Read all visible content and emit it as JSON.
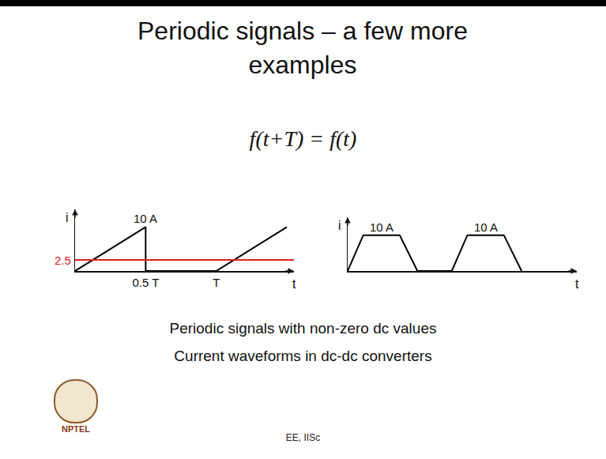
{
  "slide": {
    "title": "Periodic signals – a few more examples",
    "equation": "f(t+T) = f(t)",
    "notes": [
      "Periodic signals with non-zero dc values",
      "Current waveforms in dc-dc converters"
    ],
    "footer": "EE, IISc",
    "logo_text": "NPTEL"
  },
  "chart_data": [
    {
      "type": "line",
      "x_label": "t",
      "y_label": "i",
      "x": [
        0,
        0.5,
        0.5,
        1,
        1.5
      ],
      "values": [
        0,
        10,
        0,
        0,
        10
      ],
      "color": "#000000",
      "line_style": "solid",
      "xlim": [
        0,
        1.55
      ],
      "xticks": [
        {
          "value": 0.5,
          "label": "0.5 T"
        },
        {
          "value": 1,
          "label": "T"
        }
      ],
      "ylim": [
        0,
        14
      ],
      "yticks": [],
      "tick_labels": "x",
      "grid": false,
      "annotations": [
        {
          "text": "10 A",
          "x": 0.5,
          "y": 10
        }
      ],
      "dc_value": 2.5,
      "dc_color": "#e0201a"
    },
    {
      "type": "line",
      "x_label": "t",
      "y_label": "i",
      "x": [
        0,
        0.15,
        0.5,
        0.67,
        1,
        1.15,
        1.5,
        1.67
      ],
      "values": [
        0,
        10,
        10,
        0,
        0,
        10,
        10,
        0
      ],
      "color": "#000000",
      "line_style": "solid",
      "xlim": [
        0,
        2.2
      ],
      "xticks": [],
      "ylim": [
        0,
        15
      ],
      "yticks": [],
      "tick_labels": false,
      "grid": false,
      "annotations": [
        {
          "text": "10 A",
          "x": 0.325,
          "y": 10
        },
        {
          "text": "10 A",
          "x": 1.325,
          "y": 10
        }
      ]
    }
  ]
}
